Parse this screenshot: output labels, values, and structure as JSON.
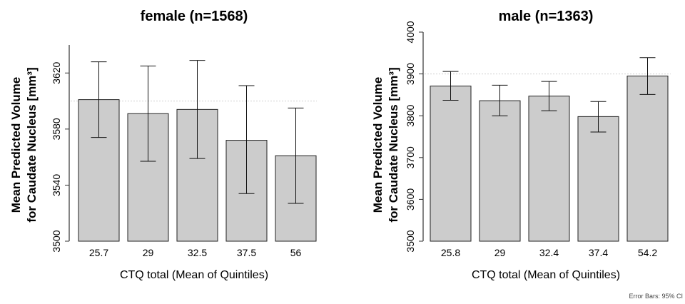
{
  "footnote": "Error Bars: 95% CI",
  "chart_data": [
    {
      "type": "bar",
      "title": "female (n=1568)",
      "ylabel_line1": "Mean Predicted Volume",
      "ylabel_line2": "for Caudate Nucleus [mm³]",
      "xlabel": "CTQ total (Mean of Quintiles)",
      "categories": [
        "25.7",
        "29",
        "32.5",
        "37.5",
        "56"
      ],
      "values": [
        3601,
        3591,
        3594,
        3572,
        3561
      ],
      "ci_low": [
        3574,
        3557,
        3559,
        3534,
        3527
      ],
      "ci_high": [
        3628,
        3625,
        3629,
        3611,
        3595
      ],
      "ylim": [
        3500,
        3640
      ],
      "yticks": [
        3500,
        3540,
        3580,
        3620
      ],
      "ref_line": 3600,
      "grid": false,
      "bar_color": "#cccccc"
    },
    {
      "type": "bar",
      "title": "male (n=1363)",
      "ylabel_line1": "Mean Predicted Volume",
      "ylabel_line2": "for Caudate Nucleus [mm³]",
      "xlabel": "CTQ total (Mean of Quintiles)",
      "categories": [
        "25.8",
        "29",
        "32.4",
        "37.4",
        "54.2"
      ],
      "values": [
        3871,
        3836,
        3847,
        3798,
        3895
      ],
      "ci_low": [
        3837,
        3800,
        3812,
        3761,
        3851
      ],
      "ci_high": [
        3906,
        3873,
        3882,
        3834,
        3939
      ],
      "ylim": [
        3500,
        4000
      ],
      "yticks": [
        3500,
        3600,
        3700,
        3800,
        3900,
        4000
      ],
      "ref_line": 3900,
      "grid": false,
      "bar_color": "#cccccc"
    }
  ]
}
